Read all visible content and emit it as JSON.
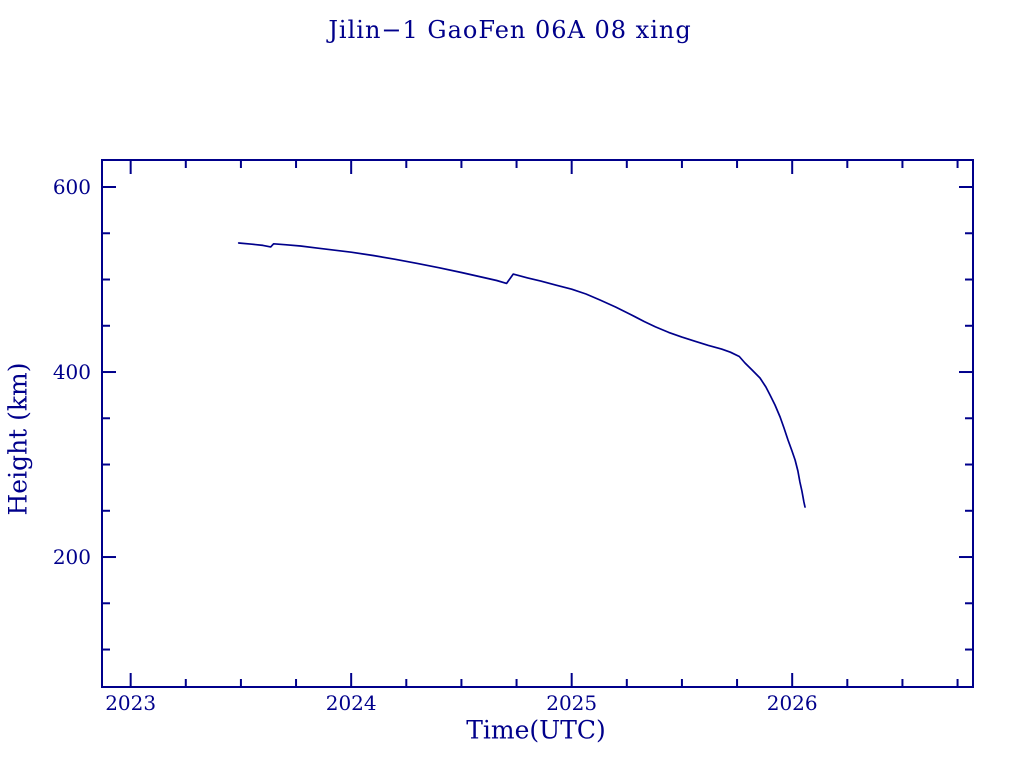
{
  "page": {
    "background": "#ffffff"
  },
  "chart_data": {
    "type": "line",
    "title": "Jilin−1 GaoFen 06A 08 xing",
    "xlabel": "Time(UTC)",
    "ylabel": "Height (km)",
    "line_color": "#00008B",
    "axis_color": "#00008B",
    "text_color": "#00008B",
    "grid": false,
    "legend_position": "none",
    "xlim": [
      2022.87,
      2026.82
    ],
    "ylim": [
      59.5,
      629.2
    ],
    "x_major_ticks": [
      2023,
      2024,
      2025,
      2026
    ],
    "x_tick_labels": [
      "2023",
      "2024",
      "2025",
      "2026"
    ],
    "x_minor_step": 0.25,
    "y_major_ticks": [
      200,
      400,
      600
    ],
    "y_tick_labels": [
      "200",
      "400",
      "600"
    ],
    "y_minor_step": 50,
    "series": [
      {
        "name": "orbital-height-km",
        "points": [
          [
            2023.49,
            539.5
          ],
          [
            2023.55,
            538.2
          ],
          [
            2023.6,
            536.9
          ],
          [
            2023.635,
            535.3
          ],
          [
            2023.648,
            538.6
          ],
          [
            2023.7,
            537.6
          ],
          [
            2023.77,
            536.2
          ],
          [
            2023.85,
            533.8
          ],
          [
            2023.93,
            531.6
          ],
          [
            2024.0,
            529.5
          ],
          [
            2024.1,
            526.0
          ],
          [
            2024.2,
            521.9
          ],
          [
            2024.3,
            517.4
          ],
          [
            2024.4,
            512.7
          ],
          [
            2024.5,
            507.6
          ],
          [
            2024.6,
            502.2
          ],
          [
            2024.66,
            498.9
          ],
          [
            2024.705,
            495.8
          ],
          [
            2024.735,
            505.9
          ],
          [
            2024.8,
            501.8
          ],
          [
            2024.86,
            498.3
          ],
          [
            2024.93,
            493.9
          ],
          [
            2025.0,
            489.5
          ],
          [
            2025.065,
            484.3
          ],
          [
            2025.13,
            477.8
          ],
          [
            2025.2,
            470.2
          ],
          [
            2025.265,
            462.5
          ],
          [
            2025.33,
            454.5
          ],
          [
            2025.38,
            448.8
          ],
          [
            2025.44,
            442.8
          ],
          [
            2025.5,
            437.8
          ],
          [
            2025.56,
            433.2
          ],
          [
            2025.62,
            428.8
          ],
          [
            2025.68,
            424.8
          ],
          [
            2025.72,
            421.4
          ],
          [
            2025.76,
            416.8
          ],
          [
            2025.786,
            409.7
          ],
          [
            2025.818,
            402.2
          ],
          [
            2025.854,
            393.5
          ],
          [
            2025.881,
            383.8
          ],
          [
            2025.9,
            375.1
          ],
          [
            2025.922,
            364.3
          ],
          [
            2025.945,
            351.4
          ],
          [
            2025.963,
            339.5
          ],
          [
            2025.981,
            326.5
          ],
          [
            2025.999,
            314.6
          ],
          [
            2026.013,
            304.9
          ],
          [
            2026.026,
            293.0
          ],
          [
            2026.035,
            281.1
          ],
          [
            2026.044,
            271.4
          ],
          [
            2026.049,
            264.9
          ],
          [
            2026.053,
            259.5
          ],
          [
            2026.058,
            254.1
          ]
        ]
      }
    ]
  }
}
